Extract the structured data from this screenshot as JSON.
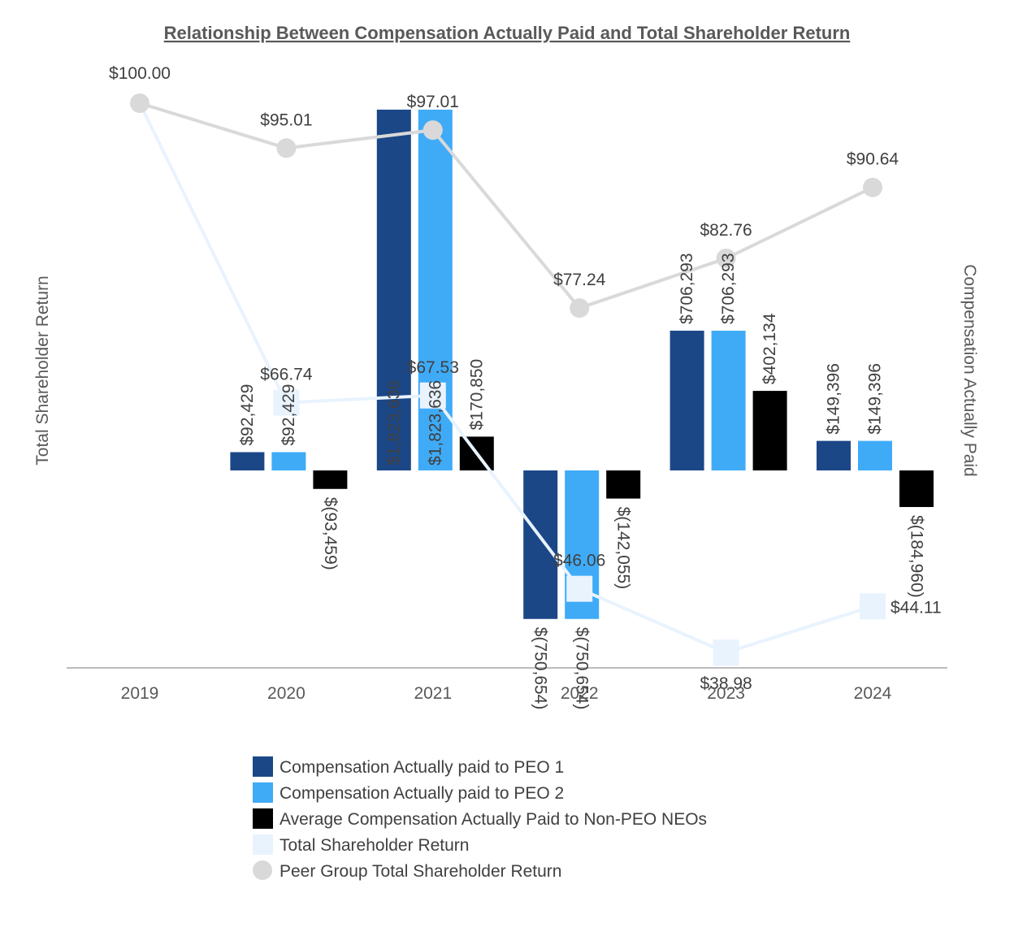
{
  "chart_data": {
    "type": "bar",
    "title": "Relationship Between Compensation Actually Paid and Total Shareholder Return",
    "ylabel_left": "Total Shareholder Return",
    "ylabel_right": "Compensation Actually Paid",
    "categories": [
      "2019",
      "2020",
      "2021",
      "2022",
      "2023",
      "2024"
    ],
    "bar_series": [
      {
        "name": "Compensation Actually paid to PEO 1",
        "color": "#1b4787",
        "values": [
          null,
          92429,
          1823636,
          -750654,
          706293,
          149396
        ],
        "labels": [
          null,
          "$92,429",
          "$1,823,636",
          "$(750,654)",
          "$706,293",
          "$149,396"
        ]
      },
      {
        "name": "Compensation Actually paid to PEO 2",
        "color": "#3fabf7",
        "values": [
          null,
          92429,
          1823636,
          -750654,
          706293,
          149396
        ],
        "labels": [
          null,
          "$92,429",
          "$1,823,636",
          "$(750,654)",
          "$706,293",
          "$149,396"
        ]
      },
      {
        "name": "Average Compensation Actually Paid to Non-PEO NEOs",
        "color": "#000000",
        "values": [
          null,
          -93459,
          170850,
          -142055,
          402134,
          -184960
        ],
        "labels": [
          null,
          "$(93,459)",
          "$170,850",
          "$(142,055)",
          "$402,134",
          "$(184,960)"
        ]
      }
    ],
    "line_series": [
      {
        "name": "Total Shareholder Return",
        "color": "#e8f3fe",
        "marker": "square",
        "values": [
          100.0,
          66.74,
          67.53,
          46.06,
          38.98,
          44.11
        ],
        "labels": [
          null,
          "$66.74",
          "$67.53",
          "$46.06",
          "$38.98",
          "$44.11"
        ]
      },
      {
        "name": "Peer Group Total Shareholder Return",
        "color": "#d9d9d9",
        "marker": "circle",
        "values": [
          100.0,
          95.01,
          97.01,
          77.24,
          82.76,
          90.64
        ],
        "labels": [
          "$100.00",
          "$95.01",
          "$97.01",
          "$77.24",
          "$82.76",
          "$90.64"
        ]
      }
    ],
    "legend": [
      {
        "label": "Compensation Actually paid to PEO 1",
        "color": "#1b4787",
        "marker": "square"
      },
      {
        "label": "Compensation Actually paid to PEO 2",
        "color": "#3fabf7",
        "marker": "square"
      },
      {
        "label": "Average Compensation Actually Paid to Non-PEO NEOs",
        "color": "#000000",
        "marker": "square"
      },
      {
        "label": "Total Shareholder Return",
        "color": "#e8f3fe",
        "marker": "square"
      },
      {
        "label": "Peer Group Total Shareholder Return",
        "color": "#d9d9d9",
        "marker": "circle"
      }
    ],
    "legend_position": "bottom",
    "grid": false
  }
}
